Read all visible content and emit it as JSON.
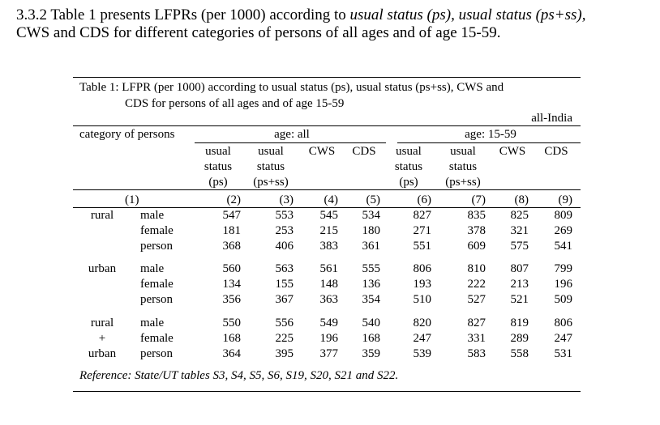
{
  "intro": {
    "p1": "3.3.2  Table 1 presents LFPRs (per 1000) according to ",
    "i1": "usual status (ps), usual status (ps+ss),",
    "p2": "CWS and CDS for different categories of persons of all ages and of age 15-59."
  },
  "table": {
    "caption_line1": "Table 1: LFPR (per 1000) according to usual status (ps), usual status (ps+ss), CWS and",
    "caption_line2": "CDS for persons of all ages and of age 15-59",
    "scope": "all-India",
    "category_header": "category of persons",
    "group_all": "age: all",
    "group_1559": "age: 15-59",
    "col_us_ps": [
      "usual",
      "status",
      "(ps)"
    ],
    "col_us_psss": [
      "usual",
      "status",
      "(ps+ss)"
    ],
    "col_cws": "CWS",
    "col_cds": "CDS",
    "col_numbers": [
      "(1)",
      "(2)",
      "(3)",
      "(4)",
      "(5)",
      "(6)",
      "(7)",
      "(8)",
      "(9)"
    ],
    "groups": [
      {
        "labels": [
          "rural",
          "",
          ""
        ],
        "rows": [
          {
            "sex": "male",
            "values": [
              "547",
              "553",
              "545",
              "534",
              "827",
              "835",
              "825",
              "809"
            ]
          },
          {
            "sex": "female",
            "values": [
              "181",
              "253",
              "215",
              "180",
              "271",
              "378",
              "321",
              "269"
            ]
          },
          {
            "sex": "person",
            "values": [
              "368",
              "406",
              "383",
              "361",
              "551",
              "609",
              "575",
              "541"
            ]
          }
        ]
      },
      {
        "labels": [
          "urban",
          "",
          ""
        ],
        "rows": [
          {
            "sex": "male",
            "values": [
              "560",
              "563",
              "561",
              "555",
              "806",
              "810",
              "807",
              "799"
            ]
          },
          {
            "sex": "female",
            "values": [
              "134",
              "155",
              "148",
              "136",
              "193",
              "222",
              "213",
              "196"
            ]
          },
          {
            "sex": "person",
            "values": [
              "356",
              "367",
              "363",
              "354",
              "510",
              "527",
              "521",
              "509"
            ]
          }
        ]
      },
      {
        "labels": [
          "rural",
          "+",
          "urban"
        ],
        "rows": [
          {
            "sex": "male",
            "values": [
              "550",
              "556",
              "549",
              "540",
              "820",
              "827",
              "819",
              "806"
            ]
          },
          {
            "sex": "female",
            "values": [
              "168",
              "225",
              "196",
              "168",
              "247",
              "331",
              "289",
              "247"
            ]
          },
          {
            "sex": "person",
            "values": [
              "364",
              "395",
              "377",
              "359",
              "539",
              "583",
              "558",
              "531"
            ]
          }
        ]
      }
    ],
    "reference": "Reference: State/UT tables S3, S4, S5, S6, S19, S20, S21 and S22."
  }
}
